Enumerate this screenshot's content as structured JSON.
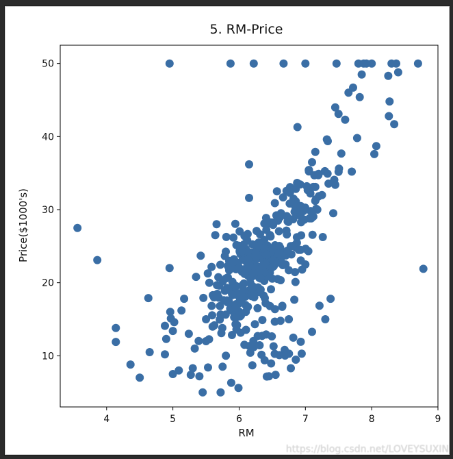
{
  "watermark": "https://blog.csdn.net/LOVEYSUXIN",
  "chart_data": {
    "type": "scatter",
    "title": "5. RM-Price",
    "xlabel": "RM",
    "ylabel": "Price($1000's)",
    "xlim": [
      3.3,
      9.0
    ],
    "ylim": [
      3.0,
      52.5
    ],
    "xticks": [
      4,
      5,
      6,
      7,
      8,
      9
    ],
    "yticks": [
      10,
      20,
      30,
      40,
      50
    ],
    "grid": false,
    "marker_color": "#3a6ea5",
    "points": [
      [
        3.56,
        27.5
      ],
      [
        3.86,
        23.1
      ],
      [
        4.14,
        13.8
      ],
      [
        4.14,
        11.9
      ],
      [
        4.36,
        8.8
      ],
      [
        4.5,
        7.0
      ],
      [
        4.63,
        17.9
      ],
      [
        4.65,
        10.5
      ],
      [
        4.88,
        14.1
      ],
      [
        4.88,
        10.2
      ],
      [
        4.9,
        12.3
      ],
      [
        4.95,
        22.0
      ],
      [
        4.95,
        50.0
      ],
      [
        4.96,
        16.0
      ],
      [
        4.97,
        15.1
      ],
      [
        5.0,
        13.4
      ],
      [
        5.0,
        7.5
      ],
      [
        5.02,
        14.6
      ],
      [
        5.09,
        8.0
      ],
      [
        5.13,
        16.2
      ],
      [
        5.17,
        17.8
      ],
      [
        5.24,
        13.0
      ],
      [
        5.27,
        7.4
      ],
      [
        5.3,
        8.3
      ],
      [
        5.33,
        11.0
      ],
      [
        5.35,
        20.8
      ],
      [
        5.4,
        7.2
      ],
      [
        5.42,
        23.7
      ],
      [
        5.45,
        5.0
      ],
      [
        5.5,
        15.0
      ],
      [
        5.5,
        12.0
      ],
      [
        5.53,
        8.4
      ],
      [
        5.55,
        20.0
      ],
      [
        5.6,
        14.0
      ],
      [
        5.62,
        18.0
      ],
      [
        5.64,
        26.5
      ],
      [
        5.66,
        28.0
      ],
      [
        5.7,
        19.6
      ],
      [
        5.72,
        5.0
      ],
      [
        5.75,
        8.5
      ],
      [
        5.8,
        10.0
      ],
      [
        5.85,
        21.7
      ],
      [
        5.85,
        23.0
      ],
      [
        5.87,
        50.0
      ],
      [
        5.88,
        6.3
      ],
      [
        5.9,
        18.3
      ],
      [
        5.95,
        15.2
      ],
      [
        5.99,
        5.6
      ],
      [
        6.0,
        22.0
      ],
      [
        6.02,
        25.0
      ],
      [
        6.05,
        19.5
      ],
      [
        6.08,
        11.5
      ],
      [
        6.1,
        16.0
      ],
      [
        6.13,
        23.2
      ],
      [
        6.15,
        36.2
      ],
      [
        6.15,
        31.6
      ],
      [
        6.17,
        20.6
      ],
      [
        6.2,
        8.7
      ],
      [
        6.22,
        50.0
      ],
      [
        6.25,
        24.1
      ],
      [
        6.28,
        12.7
      ],
      [
        6.3,
        21.5
      ],
      [
        6.35,
        14.9
      ],
      [
        6.38,
        28.1
      ],
      [
        6.4,
        17.2
      ],
      [
        6.42,
        23.8
      ],
      [
        6.45,
        7.2
      ],
      [
        6.48,
        19.1
      ],
      [
        6.5,
        24.6
      ],
      [
        6.52,
        11.3
      ],
      [
        6.55,
        7.4
      ],
      [
        6.57,
        32.5
      ],
      [
        6.58,
        20.5
      ],
      [
        6.6,
        24.0
      ],
      [
        6.62,
        29.0
      ],
      [
        6.65,
        16.7
      ],
      [
        6.67,
        50.0
      ],
      [
        6.7,
        22.5
      ],
      [
        6.72,
        26.6
      ],
      [
        6.75,
        15.0
      ],
      [
        6.78,
        8.3
      ],
      [
        6.8,
        25.0
      ],
      [
        6.82,
        31.5
      ],
      [
        6.85,
        20.1
      ],
      [
        6.88,
        41.3
      ],
      [
        6.9,
        24.5
      ],
      [
        6.93,
        30.5
      ],
      [
        6.95,
        21.8
      ],
      [
        7.0,
        22.5
      ],
      [
        7.0,
        50.0
      ],
      [
        7.02,
        33.2
      ],
      [
        7.05,
        35.4
      ],
      [
        7.08,
        29.8
      ],
      [
        7.1,
        36.5
      ],
      [
        7.12,
        33.1
      ],
      [
        7.15,
        37.9
      ],
      [
        7.18,
        30.0
      ],
      [
        7.2,
        34.9
      ],
      [
        7.25,
        32.0
      ],
      [
        7.3,
        15.0
      ],
      [
        7.38,
        17.8
      ],
      [
        7.42,
        29.5
      ],
      [
        7.45,
        33.4
      ],
      [
        7.45,
        44.0
      ],
      [
        7.47,
        50.0
      ],
      [
        7.5,
        43.1
      ],
      [
        7.6,
        42.3
      ],
      [
        7.65,
        46.0
      ],
      [
        7.7,
        35.2
      ],
      [
        7.72,
        46.7
      ],
      [
        7.78,
        39.8
      ],
      [
        7.8,
        50.0
      ],
      [
        7.82,
        45.4
      ],
      [
        7.85,
        48.5
      ],
      [
        7.88,
        50.0
      ],
      [
        7.92,
        50.0
      ],
      [
        8.0,
        50.0
      ],
      [
        8.04,
        37.6
      ],
      [
        8.07,
        38.7
      ],
      [
        8.25,
        48.3
      ],
      [
        8.26,
        42.8
      ],
      [
        8.27,
        44.8
      ],
      [
        8.3,
        50.0
      ],
      [
        8.34,
        41.7
      ],
      [
        8.37,
        50.0
      ],
      [
        8.4,
        48.8
      ],
      [
        8.7,
        50.0
      ],
      [
        8.78,
        21.9
      ]
    ],
    "dense_clusters": [
      {
        "cx": 6.1,
        "cy": 21.5,
        "sx": 0.25,
        "sy": 3.0,
        "n": 150,
        "slope": 6.0
      },
      {
        "cx": 6.55,
        "cy": 23.8,
        "sx": 0.22,
        "sy": 1.2,
        "n": 40,
        "slope": 2.0
      },
      {
        "cx": 6.0,
        "cy": 16.0,
        "sx": 0.3,
        "sy": 3.0,
        "n": 40,
        "slope": 3.0
      },
      {
        "cx": 6.6,
        "cy": 12.5,
        "sx": 0.3,
        "sy": 2.5,
        "n": 25,
        "slope": 0.0
      },
      {
        "cx": 7.1,
        "cy": 32.0,
        "sx": 0.25,
        "sy": 2.5,
        "n": 40,
        "slope": 8.0
      },
      {
        "cx": 6.7,
        "cy": 28.0,
        "sx": 0.25,
        "sy": 2.0,
        "n": 30,
        "slope": 6.0
      }
    ]
  }
}
